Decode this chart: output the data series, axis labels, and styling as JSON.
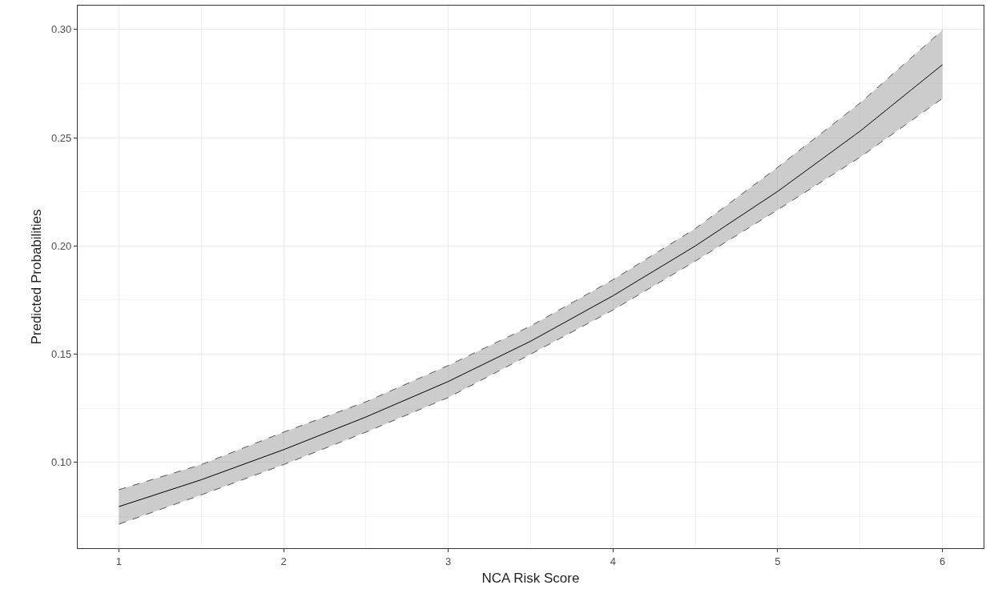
{
  "chart_data": {
    "type": "line",
    "xlabel": "NCA Risk Score",
    "ylabel": "Predicted Probabilities",
    "x": [
      1,
      1.5,
      2,
      2.5,
      3,
      3.5,
      4,
      4.5,
      5,
      5.5,
      6
    ],
    "series": [
      {
        "color": "#000000",
        "values": [
          0.0796,
          0.092,
          0.1059,
          0.121,
          0.1374,
          0.156,
          0.177,
          0.2,
          0.2252,
          0.253,
          0.2837
        ],
        "lower": [
          0.0715,
          0.085,
          0.099,
          0.114,
          0.13,
          0.15,
          0.1704,
          0.193,
          0.2167,
          0.241,
          0.2681
        ],
        "upper": [
          0.0874,
          0.099,
          0.114,
          0.128,
          0.1448,
          0.163,
          0.1844,
          0.208,
          0.2363,
          0.266,
          0.2996
        ]
      },
      {
        "color": "#555555",
        "line_style": "dashed",
        "values": [
          0.0715,
          0.085,
          0.099,
          0.114,
          0.13,
          0.15,
          0.1704,
          0.193,
          0.2167,
          0.241,
          0.2681
        ]
      },
      {
        "color": "#555555",
        "line_style": "dashed",
        "values": [
          0.0874,
          0.099,
          0.114,
          0.128,
          0.1448,
          0.163,
          0.1844,
          0.208,
          0.2363,
          0.266,
          0.2996
        ]
      }
    ],
    "xlim": [
      0.75,
      6.25
    ],
    "xticks": [
      1,
      2,
      3,
      4,
      5,
      6
    ],
    "ylim": [
      0.0604,
      0.311
    ],
    "yticks": [
      {
        "value": 0.1,
        "label": "0.10"
      },
      {
        "value": 0.15,
        "label": "0.15"
      },
      {
        "value": 0.2,
        "label": "0.20"
      },
      {
        "value": 0.25,
        "label": "0.25"
      },
      {
        "value": 0.3,
        "label": "0.30"
      }
    ],
    "grid": true,
    "marker": "none",
    "line_style": "solid"
  }
}
